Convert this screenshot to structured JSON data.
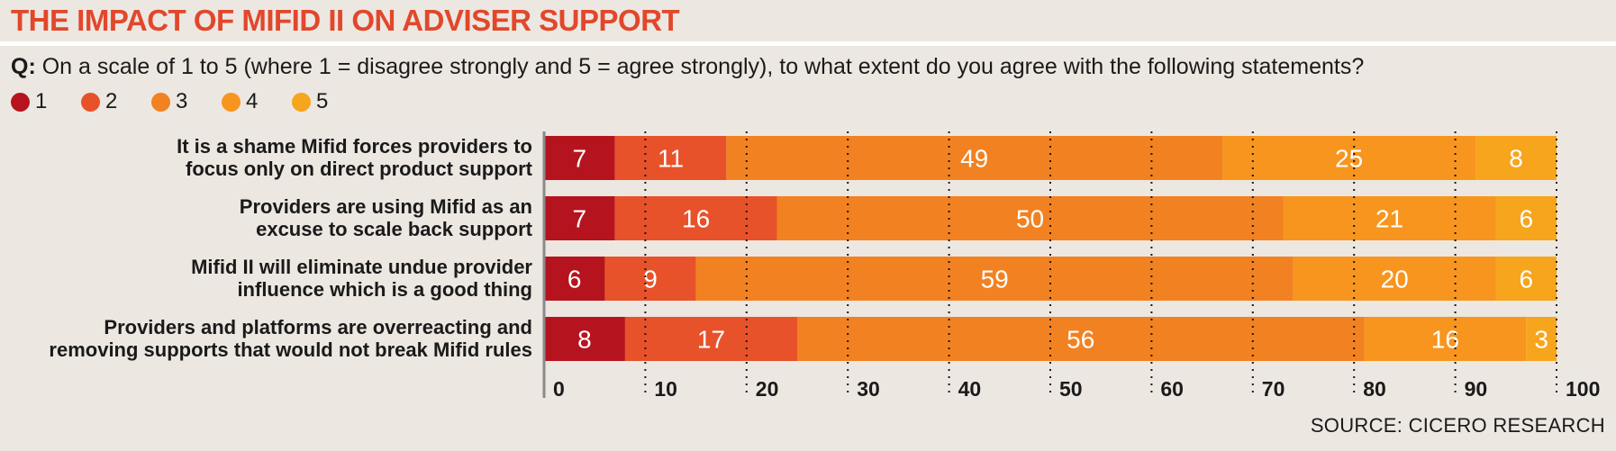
{
  "header": {
    "title": "THE IMPACT OF MIFID II ON ADVISER SUPPORT",
    "question_prefix": "Q:",
    "question_text": "On a scale of 1 to 5  (where 1 = disagree strongly and 5 = agree strongly), to what extent do you agree with the following statements?"
  },
  "source": "SOURCE: CICERO RESEARCH",
  "chart_data": {
    "type": "bar",
    "orientation": "horizontal",
    "stacked": true,
    "categories": [
      [
        "It is a shame Mifid forces providers to",
        "focus only on direct product support"
      ],
      [
        "Providers are using Mifid as an",
        "excuse to scale back support"
      ],
      [
        "Mifid II will eliminate undue provider",
        "influence which is a good thing"
      ],
      [
        "Providers and platforms are overreacting and",
        "removing supports that would not break Mifid rules"
      ]
    ],
    "series": [
      {
        "name": "1",
        "color": "#b5141f",
        "values": [
          7,
          7,
          6,
          8
        ]
      },
      {
        "name": "2",
        "color": "#e8522a",
        "values": [
          11,
          16,
          9,
          17
        ]
      },
      {
        "name": "3",
        "color": "#f28121",
        "values": [
          49,
          50,
          59,
          56
        ]
      },
      {
        "name": "4",
        "color": "#f7951f",
        "values": [
          25,
          21,
          20,
          16
        ]
      },
      {
        "name": "5",
        "color": "#f7a51c",
        "values": [
          8,
          6,
          6,
          3
        ]
      }
    ],
    "xlim": [
      0,
      100
    ],
    "xticks": [
      0,
      10,
      20,
      30,
      40,
      50,
      60,
      70,
      80,
      90,
      100
    ],
    "grid": "dotted vertical",
    "legend_position": "top-left"
  }
}
